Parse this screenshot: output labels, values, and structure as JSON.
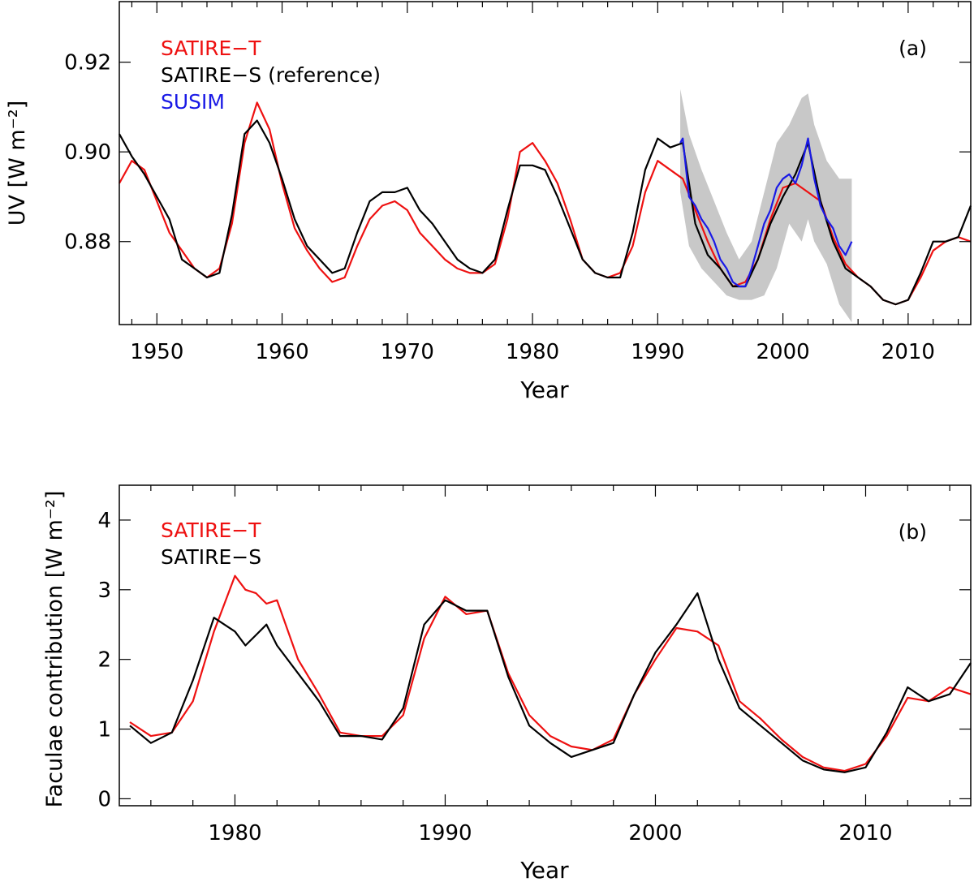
{
  "chart_data": [
    {
      "panel_label": "(a)",
      "type": "line",
      "title": "",
      "xlabel": "Year",
      "ylabel": "UV [W m⁻²]",
      "xlim": [
        1947,
        2015
      ],
      "ylim": [
        0.8615,
        0.9335
      ],
      "xticks": [
        1950,
        1960,
        1970,
        1980,
        1990,
        2000,
        2010
      ],
      "yticks": [
        0.88,
        0.9,
        0.92
      ],
      "ytick_labels": [
        "0.88",
        "0.90",
        "0.92"
      ],
      "legend": [
        "SATIRE−T",
        "SATIRE−S (reference)",
        "SUSIM"
      ],
      "legend_position": "top-left",
      "colors": {
        "satire_t": "#ee1111",
        "satire_s": "#000000",
        "susim": "#1a1ae6",
        "band": "#c8c8c8"
      },
      "series": [
        {
          "name": "SATIRE−T",
          "x": [
            1947.0,
            1948.0,
            1949.0,
            1950.0,
            1951.0,
            1952.0,
            1953.0,
            1954.0,
            1955.0,
            1956.0,
            1957.0,
            1958.0,
            1959.0,
            1960.0,
            1961.0,
            1962.0,
            1963.0,
            1964.0,
            1965.0,
            1966.0,
            1967.0,
            1968.0,
            1969.0,
            1970.0,
            1971.0,
            1972.0,
            1973.0,
            1974.0,
            1975.0,
            1976.0,
            1977.0,
            1978.0,
            1979.0,
            1980.0,
            1981.0,
            1982.0,
            1983.0,
            1984.0,
            1985.0,
            1986.0,
            1987.0,
            1988.0,
            1989.0,
            1990.0,
            1991.0,
            1992.0,
            1993.0,
            1994.0,
            1995.0,
            1996.0,
            1997.0,
            1998.0,
            1999.0,
            2000.0,
            2001.0,
            2002.0,
            2003.0,
            2004.0,
            2005.0,
            2006.0,
            2007.0,
            2008.0,
            2009.0,
            2010.0,
            2011.0,
            2012.0,
            2013.0,
            2014.0,
            2015.0
          ],
          "y": [
            0.893,
            0.898,
            0.896,
            0.889,
            0.882,
            0.878,
            0.874,
            0.872,
            0.874,
            0.884,
            0.902,
            0.911,
            0.905,
            0.893,
            0.883,
            0.878,
            0.874,
            0.871,
            0.872,
            0.879,
            0.885,
            0.888,
            0.889,
            0.887,
            0.882,
            0.879,
            0.876,
            0.874,
            0.873,
            0.873,
            0.875,
            0.885,
            0.9,
            0.902,
            0.898,
            0.893,
            0.885,
            0.876,
            0.873,
            0.872,
            0.873,
            0.879,
            0.891,
            0.898,
            0.896,
            0.894,
            0.887,
            0.88,
            0.874,
            0.87,
            0.871,
            0.876,
            0.885,
            0.892,
            0.893,
            0.891,
            0.889,
            0.881,
            0.875,
            0.872,
            0.87,
            0.867,
            0.866,
            0.867,
            0.872,
            0.878,
            0.88,
            0.881,
            0.88
          ]
        },
        {
          "name": "SATIRE−S (reference)",
          "x": [
            1947.0,
            1948.0,
            1949.0,
            1950.0,
            1951.0,
            1952.0,
            1953.0,
            1954.0,
            1955.0,
            1956.0,
            1957.0,
            1958.0,
            1959.0,
            1960.0,
            1961.0,
            1962.0,
            1963.0,
            1964.0,
            1965.0,
            1966.0,
            1967.0,
            1968.0,
            1969.0,
            1970.0,
            1971.0,
            1972.0,
            1973.0,
            1974.0,
            1975.0,
            1976.0,
            1977.0,
            1978.0,
            1979.0,
            1980.0,
            1981.0,
            1982.0,
            1983.0,
            1984.0,
            1985.0,
            1986.0,
            1987.0,
            1988.0,
            1989.0,
            1990.0,
            1991.0,
            1992.0,
            1993.0,
            1994.0,
            1995.0,
            1996.0,
            1997.0,
            1998.0,
            1999.0,
            2000.0,
            2001.0,
            2002.0,
            2003.0,
            2004.0,
            2005.0,
            2006.0,
            2007.0,
            2008.0,
            2009.0,
            2010.0,
            2011.0,
            2012.0,
            2013.0,
            2014.0,
            2015.0
          ],
          "y": [
            0.904,
            0.899,
            0.895,
            0.89,
            0.885,
            0.876,
            0.874,
            0.872,
            0.873,
            0.886,
            0.904,
            0.907,
            0.902,
            0.894,
            0.885,
            0.879,
            0.876,
            0.873,
            0.874,
            0.882,
            0.889,
            0.891,
            0.891,
            0.892,
            0.887,
            0.884,
            0.88,
            0.876,
            0.874,
            0.873,
            0.876,
            0.887,
            0.897,
            0.897,
            0.896,
            0.89,
            0.883,
            0.876,
            0.873,
            0.872,
            0.872,
            0.882,
            0.896,
            0.903,
            0.901,
            0.902,
            0.884,
            0.877,
            0.874,
            0.87,
            0.87,
            0.876,
            0.884,
            0.89,
            0.895,
            0.902,
            0.889,
            0.88,
            0.874,
            0.872,
            0.87,
            0.867,
            0.866,
            0.867,
            0.873,
            0.88,
            0.88,
            0.881,
            0.888
          ]
        },
        {
          "name": "SUSIM",
          "x": [
            1991.8,
            1992.0,
            1992.5,
            1993.0,
            1993.5,
            1994.0,
            1994.5,
            1995.0,
            1995.5,
            1996.0,
            1996.5,
            1997.0,
            1997.5,
            1998.0,
            1998.5,
            1999.0,
            1999.5,
            2000.0,
            2000.5,
            2001.0,
            2001.5,
            2002.0,
            2002.5,
            2003.0,
            2003.5,
            2004.0,
            2004.5,
            2005.0,
            2005.5
          ],
          "y": [
            0.902,
            0.903,
            0.89,
            0.888,
            0.885,
            0.883,
            0.88,
            0.876,
            0.874,
            0.871,
            0.87,
            0.87,
            0.874,
            0.879,
            0.884,
            0.887,
            0.892,
            0.894,
            0.895,
            0.893,
            0.897,
            0.903,
            0.894,
            0.888,
            0.885,
            0.883,
            0.879,
            0.877,
            0.88
          ]
        }
      ],
      "band": {
        "name": "SUSIM uncertainty",
        "x": [
          1991.8,
          1992.5,
          1993.5,
          1994.5,
          1995.5,
          1996.5,
          1997.5,
          1998.5,
          1999.5,
          2000.5,
          2001.5,
          2002.0,
          2002.5,
          2003.5,
          2004.5,
          2005.5
        ],
        "upper": [
          0.914,
          0.904,
          0.896,
          0.889,
          0.882,
          0.876,
          0.88,
          0.891,
          0.902,
          0.906,
          0.912,
          0.913,
          0.906,
          0.898,
          0.894,
          0.894
        ],
        "lower": [
          0.891,
          0.879,
          0.874,
          0.871,
          0.868,
          0.867,
          0.867,
          0.868,
          0.874,
          0.884,
          0.88,
          0.885,
          0.88,
          0.875,
          0.866,
          0.862
        ]
      }
    },
    {
      "panel_label": "(b)",
      "type": "line",
      "title": "",
      "xlabel": "Year",
      "ylabel": "Faculae contribution [W m⁻²]",
      "xlim": [
        1974.5,
        2015
      ],
      "ylim": [
        -0.1,
        4.5
      ],
      "xticks": [
        1980,
        1990,
        2000,
        2010
      ],
      "yticks": [
        0,
        1,
        2,
        3,
        4
      ],
      "ytick_labels": [
        "0",
        "1",
        "2",
        "3",
        "4"
      ],
      "legend": [
        "SATIRE−T",
        "SATIRE−S"
      ],
      "legend_position": "top-left",
      "colors": {
        "satire_t": "#ee1111",
        "satire_s": "#000000"
      },
      "series": [
        {
          "name": "SATIRE−T",
          "x": [
            1975.0,
            1976.0,
            1977.0,
            1978.0,
            1979.0,
            1980.0,
            1980.5,
            1981.0,
            1981.5,
            1982.0,
            1983.0,
            1984.0,
            1985.0,
            1986.0,
            1987.0,
            1988.0,
            1989.0,
            1990.0,
            1991.0,
            1992.0,
            1993.0,
            1994.0,
            1995.0,
            1996.0,
            1997.0,
            1998.0,
            1999.0,
            2000.0,
            2001.0,
            2002.0,
            2003.0,
            2004.0,
            2005.0,
            2006.0,
            2007.0,
            2008.0,
            2009.0,
            2010.0,
            2011.0,
            2012.0,
            2013.0,
            2014.0,
            2015.0
          ],
          "y": [
            1.1,
            0.9,
            0.95,
            1.4,
            2.4,
            3.2,
            3.0,
            2.95,
            2.8,
            2.85,
            2.0,
            1.5,
            0.95,
            0.9,
            0.9,
            1.2,
            2.3,
            2.9,
            2.65,
            2.7,
            1.8,
            1.2,
            0.9,
            0.75,
            0.7,
            0.85,
            1.5,
            2.0,
            2.45,
            2.4,
            2.2,
            1.4,
            1.15,
            0.85,
            0.6,
            0.45,
            0.4,
            0.5,
            0.9,
            1.45,
            1.4,
            1.6,
            1.5
          ]
        },
        {
          "name": "SATIRE−S",
          "x": [
            1975.0,
            1976.0,
            1977.0,
            1978.0,
            1979.0,
            1980.0,
            1980.5,
            1981.0,
            1981.5,
            1982.0,
            1983.0,
            1984.0,
            1985.0,
            1986.0,
            1987.0,
            1988.0,
            1989.0,
            1990.0,
            1991.0,
            1992.0,
            1993.0,
            1994.0,
            1995.0,
            1996.0,
            1997.0,
            1998.0,
            1999.0,
            2000.0,
            2001.0,
            2002.0,
            2003.0,
            2004.0,
            2005.0,
            2006.0,
            2007.0,
            2008.0,
            2009.0,
            2010.0,
            2011.0,
            2012.0,
            2013.0,
            2014.0,
            2015.0
          ],
          "y": [
            1.05,
            0.8,
            0.95,
            1.7,
            2.6,
            2.4,
            2.2,
            2.35,
            2.5,
            2.2,
            1.8,
            1.4,
            0.9,
            0.9,
            0.85,
            1.3,
            2.5,
            2.85,
            2.7,
            2.7,
            1.75,
            1.05,
            0.8,
            0.6,
            0.7,
            0.8,
            1.5,
            2.1,
            2.5,
            2.95,
            2.0,
            1.3,
            1.05,
            0.8,
            0.55,
            0.42,
            0.38,
            0.45,
            0.95,
            1.6,
            1.4,
            1.5,
            1.95
          ]
        }
      ]
    }
  ]
}
